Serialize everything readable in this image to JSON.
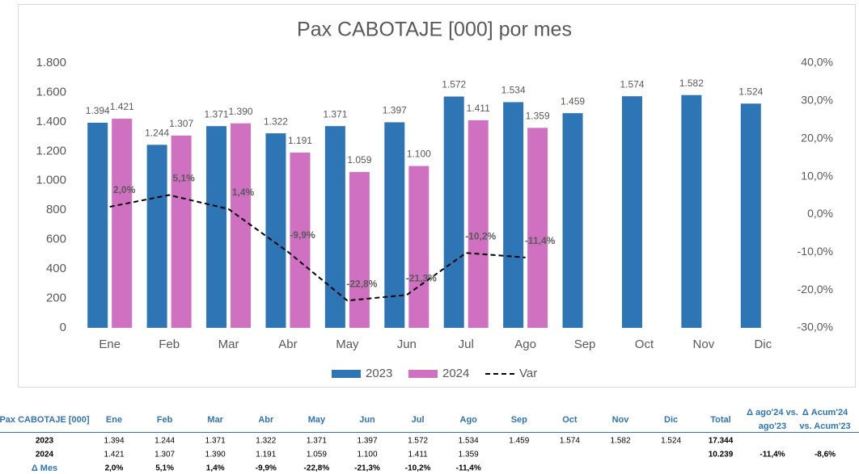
{
  "chart_data": {
    "type": "bar",
    "title": "Pax CABOTAJE [000] por mes",
    "categories": [
      "Ene",
      "Feb",
      "Mar",
      "Abr",
      "May",
      "Jun",
      "Jul",
      "Ago",
      "Sep",
      "Oct",
      "Nov",
      "Dic"
    ],
    "series": [
      {
        "name": "2023",
        "color": "#2e75b6",
        "values": [
          1394,
          1244,
          1371,
          1322,
          1371,
          1397,
          1572,
          1534,
          1459,
          1574,
          1582,
          1524
        ],
        "value_labels": [
          "1.394",
          "1.244",
          "1.371",
          "1.322",
          "1.371",
          "1.397",
          "1.572",
          "1.534",
          "1.459",
          "1.574",
          "1.582",
          "1.524"
        ]
      },
      {
        "name": "2024",
        "color": "#d070c0",
        "values": [
          1421,
          1307,
          1390,
          1191,
          1059,
          1100,
          1411,
          1359,
          null,
          null,
          null,
          null
        ],
        "value_labels": [
          "1.421",
          "1.307",
          "1.390",
          "1.191",
          "1.059",
          "1.100",
          "1.411",
          "1.359",
          null,
          null,
          null,
          null
        ]
      },
      {
        "name": "Var",
        "type": "line",
        "axis": "y2",
        "color": "#000000",
        "dashed": true,
        "values": [
          2.0,
          5.1,
          1.4,
          -9.9,
          -22.8,
          -21.3,
          -10.2,
          -11.4,
          null,
          null,
          null,
          null
        ],
        "value_labels": [
          "2,0%",
          "5,1%",
          "1,4%",
          "-9,9%",
          "-22,8%",
          "-21,3%",
          "-10,2%",
          "-11,4%",
          null,
          null,
          null,
          null
        ]
      }
    ],
    "ylim": [
      0,
      1800
    ],
    "yticks": [
      0,
      200,
      400,
      600,
      800,
      {
        "value": 1000,
        "label": "1.000"
      },
      {
        "value": 1200,
        "label": "1.200"
      },
      {
        "value": 1400,
        "label": "1.400"
      },
      {
        "value": 1600,
        "label": "1.600"
      },
      {
        "value": 1800,
        "label": "1.800"
      }
    ],
    "y2lim": [
      -30,
      40
    ],
    "y2ticks": [
      {
        "value": -30,
        "label": "-30,0%"
      },
      {
        "value": -20,
        "label": "-20,0%"
      },
      {
        "value": -10,
        "label": "-10,0%"
      },
      {
        "value": 0,
        "label": "0,0%"
      },
      {
        "value": 10,
        "label": "10,0%"
      },
      {
        "value": 20,
        "label": "20,0%"
      },
      {
        "value": 30,
        "label": "30,0%"
      },
      {
        "value": 40,
        "label": "40,0%"
      }
    ],
    "legend": "bottom"
  },
  "table": {
    "header": {
      "label": "Pax CABOTAJE [000]",
      "months": [
        "Ene",
        "Feb",
        "Mar",
        "Abr",
        "May",
        "Jun",
        "Jul",
        "Ago",
        "Sep",
        "Oct",
        "Nov",
        "Dic"
      ],
      "total": "Total",
      "delta_month": [
        "Δ ago'24 vs.",
        "ago'23"
      ],
      "delta_acum": [
        "Δ Acum'24",
        "vs. Acum'23"
      ]
    },
    "rows": [
      {
        "label": "2023",
        "months": [
          "1.394",
          "1.244",
          "1.371",
          "1.322",
          "1.371",
          "1.397",
          "1.572",
          "1.534",
          "1.459",
          "1.574",
          "1.582",
          "1.524"
        ],
        "total": "17.344"
      },
      {
        "label": "2024",
        "months": [
          "1.421",
          "1.307",
          "1.390",
          "1.191",
          "1.059",
          "1.100",
          "1.411",
          "1.359"
        ],
        "total": "10.239",
        "delta_month": "-11,4%",
        "delta_acum": "-8,6%"
      },
      {
        "label": "Δ Mes",
        "months": [
          "2,0%",
          "5,1%",
          "1,4%",
          "-9,9%",
          "-22,8%",
          "-21,3%",
          "-10,2%",
          "-11,4%"
        ]
      }
    ]
  }
}
